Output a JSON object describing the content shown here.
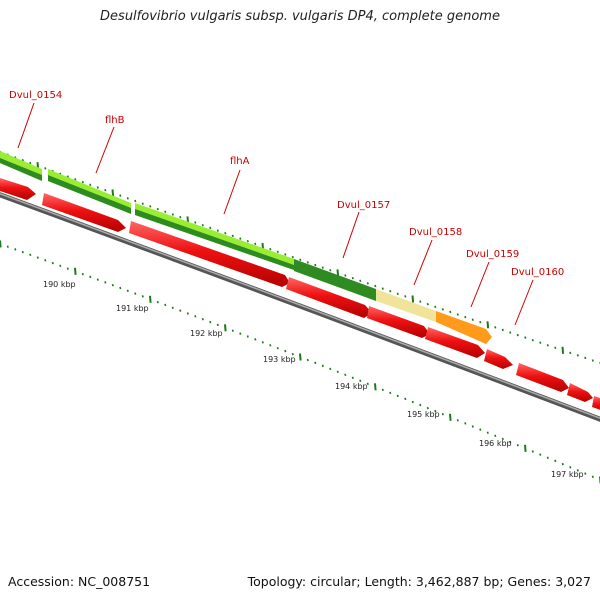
{
  "title": "Desulfovibrio vulgaris subsp. vulgaris DP4, complete genome",
  "accession": "Accession: NC_008751",
  "summary": "Topology: circular; Length: 3,462,887 bp; Genes: 3,027",
  "gene_labels": [
    "Dvul_0154",
    "flhB",
    "flhA",
    "Dvul_0157",
    "Dvul_0158",
    "Dvul_0159",
    "Dvul_0160"
  ],
  "kbp_labels": [
    "190 kbp",
    "191 kbp",
    "192 kbp",
    "193 kbp",
    "194 kbp",
    "195 kbp",
    "196 kbp",
    "197 kbp"
  ],
  "colors": {
    "label_red": "#cc0000",
    "cds_red": "#ee1111",
    "gene_lime": "#99ee33",
    "gene_green": "#2e8b22",
    "gene_yellow": "#f0e49a",
    "gene_orange": "#ff9a1a",
    "tick_green": "#1a7a1a",
    "backbone": "#888888"
  }
}
